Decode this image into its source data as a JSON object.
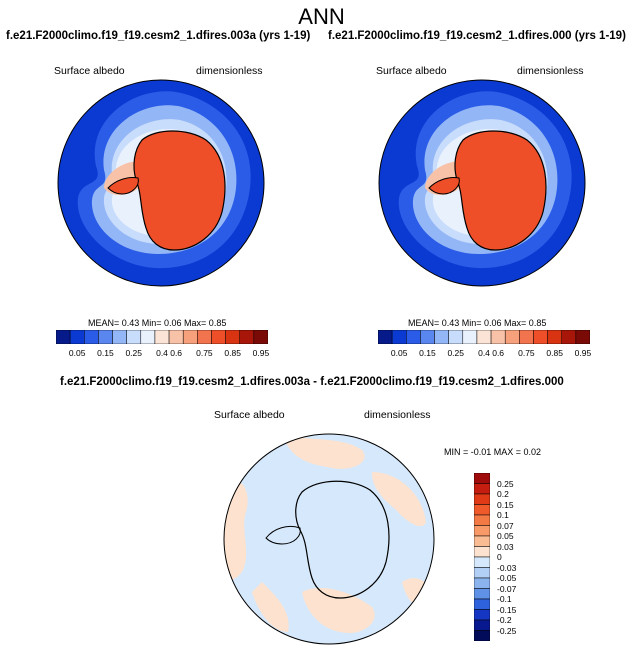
{
  "title": "ANN",
  "colors": {
    "ocean_albedo": "#0a3ad1",
    "map_border": "#000000"
  },
  "panels": [
    {
      "title": "f.e21.F2000climo.f19_f19.cesm2_1.dfires.003a (yrs 1-19)",
      "var_label": "Surface albedo",
      "units_label": "dimensionless",
      "stats_text": "MEAN=   0.43  Min=   0.06  Max=   0.85"
    },
    {
      "title": "f.e21.F2000climo.f19_f19.cesm2_1.dfires.000 (yrs 1-19)",
      "var_label": "Surface albedo",
      "units_label": "dimensionless",
      "stats_text": "MEAN=   0.43  Min=   0.06  Max=   0.85"
    }
  ],
  "diff_panel": {
    "title": "f.e21.F2000climo.f19_f19.cesm2_1.dfires.003a - f.e21.F2000climo.f19_f19.cesm2_1.dfires.000",
    "var_label": "Surface albedo",
    "units_label": "dimensionless",
    "stats_text": "MIN =  -0.01  MAX =   0.02"
  },
  "colorbar": {
    "labels": [
      "0.05",
      "0.15",
      "0.25",
      "0.4",
      "0.6",
      "0.75",
      "0.85",
      "0.95"
    ],
    "colors": [
      "#061a8a",
      "#0a3ad1",
      "#2a5ce8",
      "#5a86ef",
      "#93b6f6",
      "#c8dcfb",
      "#e9f1fd",
      "#fbe3d6",
      "#f8c2a8",
      "#f6a07c",
      "#f2744f",
      "#ef4f28",
      "#d93412",
      "#a8160a",
      "#7a0a06"
    ]
  },
  "diff_colorbar": {
    "labels": [
      "0.25",
      "0.2",
      "0.15",
      "0.1",
      "0.07",
      "0.05",
      "0.03",
      "0",
      "-0.03",
      "-0.05",
      "-0.07",
      "-0.1",
      "-0.15",
      "-0.2",
      "-0.25"
    ],
    "colors": [
      "#a00b0b",
      "#c51d0f",
      "#e03a16",
      "#f05a2a",
      "#f47a45",
      "#f79a67",
      "#f9bc93",
      "#fde3cf",
      "#d6e8fb",
      "#b2d0f6",
      "#8bb4ef",
      "#5f92e7",
      "#2e62dc",
      "#1536c2",
      "#08188f",
      "#020a5a"
    ]
  }
}
